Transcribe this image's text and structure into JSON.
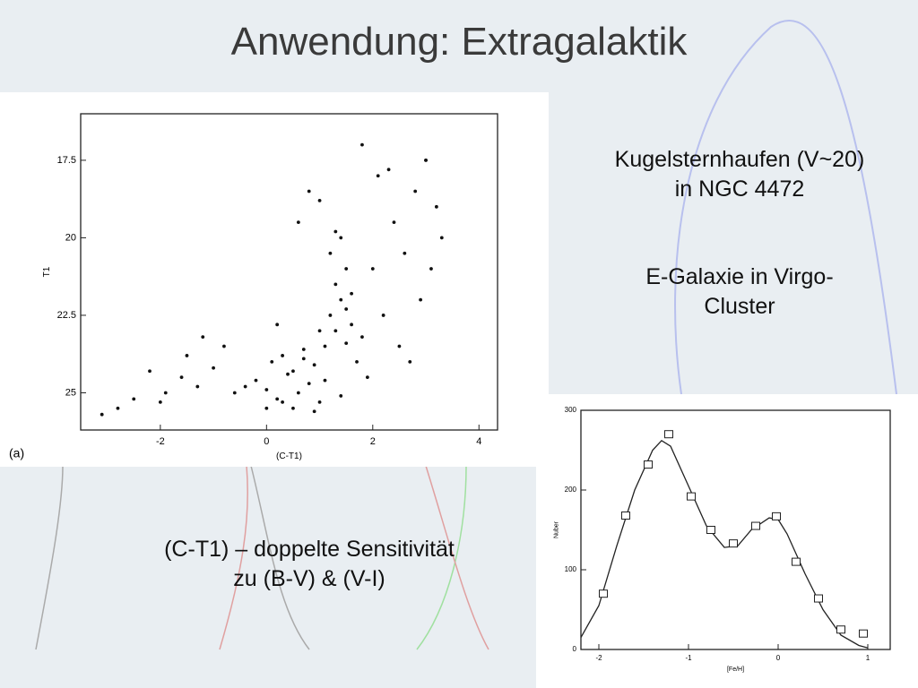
{
  "slide": {
    "title": "Anwendung: Extragalaktik",
    "right_text": [
      [
        "Kugelsternhaufen (V~20)",
        "in NGC 4472"
      ],
      [
        "E-Galaxie in Virgo-",
        "Cluster"
      ]
    ],
    "bottom_text": [
      "(C-T1) – doppelte Sensitivität",
      "zu (B-V) & (V-I)"
    ]
  },
  "chart_data": [
    {
      "type": "scatter",
      "xlabel": "(C-T1)",
      "ylabel": "T1",
      "annotation": "(a)",
      "color": "#111111",
      "xlim": [
        -3.5,
        4.35
      ],
      "ylim": [
        26.2,
        16
      ],
      "xticks": [
        -2,
        0,
        2,
        4
      ],
      "yticks": [
        17.5,
        20,
        22.5,
        25
      ],
      "x": [
        -0.2,
        0,
        0.2,
        0.4,
        0.6,
        0.8,
        1.0,
        0.1,
        0.3,
        0.5,
        0.7,
        0.9,
        1.1,
        1.3,
        1.5,
        1.7,
        1.9,
        0.5,
        0.9,
        1.2,
        1.4,
        1.6,
        1.8,
        -0.4,
        -0.6,
        0.0,
        0.3,
        0.7,
        1.0,
        1.3,
        1.5,
        1.2,
        1.4,
        1.6,
        1.3,
        1.5,
        1.1,
        1.4,
        2.0,
        2.2,
        2.4,
        2.6,
        2.8,
        3.0,
        3.2,
        2.5,
        2.9,
        3.1,
        2.1,
        2.7,
        3.3,
        1.0,
        0.8,
        0.6,
        1.8,
        2.3,
        3.0,
        0.2,
        -1.0,
        -1.3,
        -1.6,
        -1.9,
        -2.2,
        -2.5,
        -2.8,
        -3.1,
        -1.5,
        -2.0,
        -0.8,
        -1.2
      ],
      "values": [
        24.6,
        24.9,
        25.2,
        24.4,
        25.0,
        24.7,
        25.3,
        24.0,
        23.8,
        24.3,
        23.6,
        24.1,
        23.5,
        23.0,
        23.4,
        24.0,
        24.5,
        25.5,
        25.6,
        22.5,
        22.0,
        22.8,
        23.2,
        24.8,
        25.0,
        25.5,
        25.3,
        23.9,
        23.0,
        21.5,
        21.0,
        20.5,
        20.0,
        21.8,
        19.8,
        22.3,
        24.6,
        25.1,
        21.0,
        22.5,
        19.5,
        20.5,
        18.5,
        17.5,
        19.0,
        23.5,
        22.0,
        21.0,
        18.0,
        24.0,
        20.0,
        18.8,
        18.5,
        19.5,
        17.0,
        17.8,
        17.5,
        22.8,
        24.2,
        24.8,
        24.5,
        25.0,
        24.3,
        25.2,
        25.5,
        25.7,
        23.8,
        25.3,
        23.5,
        23.2
      ]
    },
    {
      "type": "line",
      "xlabel": "[Fe/H]",
      "ylabel": "Nuber",
      "color": "#222222",
      "xlim": [
        -2.2,
        1.25
      ],
      "ylim": [
        0,
        300
      ],
      "xticks": [
        -2,
        -1,
        0,
        1
      ],
      "yticks": [
        0,
        100,
        200,
        300
      ],
      "x": [
        -2.2,
        -2.0,
        -1.8,
        -1.6,
        -1.4,
        -1.3,
        -1.2,
        -1.0,
        -0.8,
        -0.6,
        -0.45,
        -0.3,
        -0.1,
        0,
        0.1,
        0.3,
        0.5,
        0.7,
        0.9,
        1.0
      ],
      "values": [
        15,
        55,
        130,
        200,
        250,
        262,
        255,
        205,
        155,
        128,
        130,
        150,
        165,
        163,
        145,
        95,
        50,
        18,
        5,
        2
      ],
      "markers": {
        "x": [
          -1.95,
          -1.7,
          -1.45,
          -1.22,
          -0.97,
          -0.75,
          -0.5,
          -0.25,
          -0.02,
          0.2,
          0.45,
          0.7,
          0.95
        ],
        "values": [
          70,
          168,
          232,
          270,
          192,
          150,
          133,
          155,
          167,
          110,
          64,
          25,
          20
        ]
      }
    }
  ]
}
